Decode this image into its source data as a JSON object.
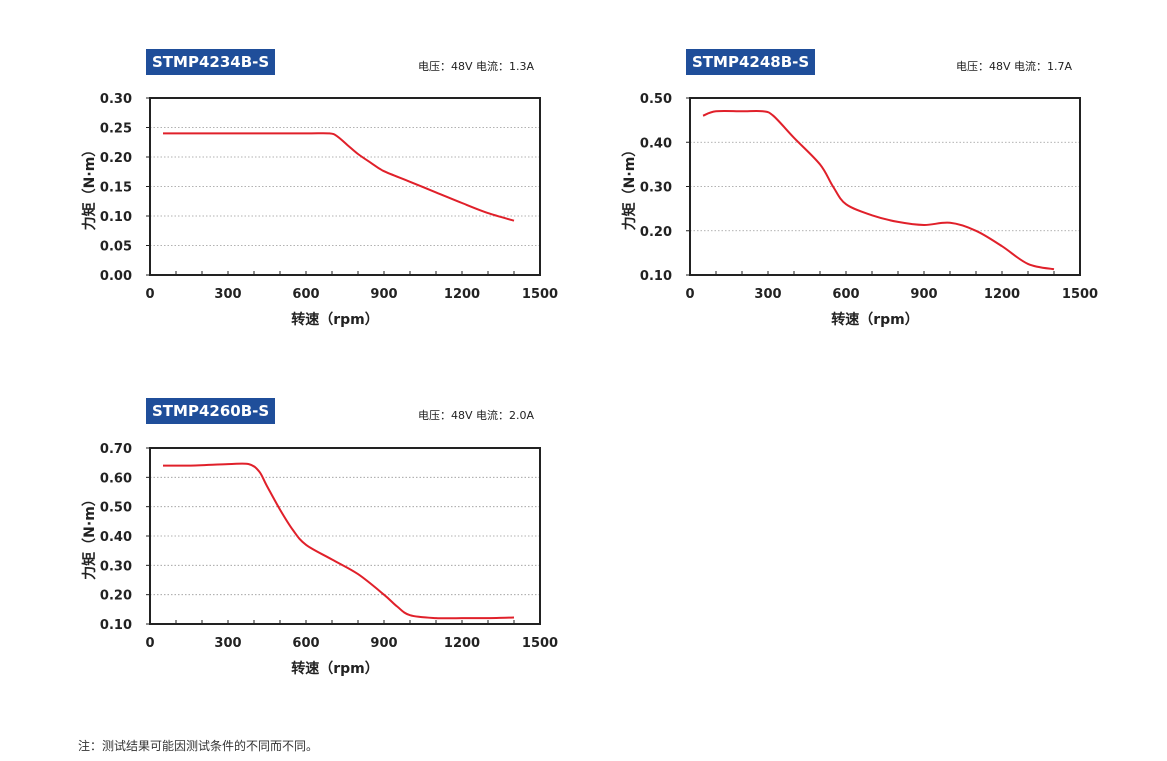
{
  "chart_data": [
    {
      "type": "line",
      "title": "STMP4234B-S",
      "subtitle": "电压：48V  电流：1.3A",
      "xlabel": "转速（rpm）",
      "ylabel": "力矩（N·m）",
      "xlim": [
        0,
        1500
      ],
      "ylim": [
        0,
        0.3
      ],
      "xticks": [
        "0",
        "300",
        "600",
        "900",
        "1200",
        "1500"
      ],
      "yticks": [
        "0.00",
        "0.05",
        "0.10",
        "0.15",
        "0.20",
        "0.25",
        "0.30"
      ],
      "grid": true,
      "series": [
        {
          "x": [
            50,
            200,
            400,
            600,
            690,
            720,
            760,
            800,
            850,
            900,
            1000,
            1100,
            1200,
            1300,
            1400
          ],
          "y": [
            0.24,
            0.24,
            0.24,
            0.24,
            0.24,
            0.235,
            0.22,
            0.205,
            0.19,
            0.176,
            0.158,
            0.14,
            0.122,
            0.105,
            0.092
          ]
        }
      ],
      "color": "#e0202a"
    },
    {
      "type": "line",
      "title": "STMP4248B-S",
      "subtitle": "电压：48V  电流：1.7A",
      "xlabel": "转速（rpm）",
      "ylabel": "力矩（N·m）",
      "xlim": [
        0,
        1500
      ],
      "ylim": [
        0.1,
        0.5
      ],
      "xticks": [
        "0",
        "300",
        "600",
        "900",
        "1200",
        "1500"
      ],
      "yticks": [
        "0.10",
        "0.20",
        "0.30",
        "0.40",
        "0.50"
      ],
      "grid": true,
      "series": [
        {
          "x": [
            50,
            100,
            200,
            280,
            320,
            400,
            500,
            550,
            600,
            700,
            800,
            900,
            1000,
            1100,
            1200,
            1300,
            1400
          ],
          "y": [
            0.46,
            0.47,
            0.47,
            0.47,
            0.46,
            0.41,
            0.35,
            0.3,
            0.26,
            0.235,
            0.22,
            0.213,
            0.218,
            0.2,
            0.165,
            0.125,
            0.113
          ]
        }
      ],
      "color": "#e0202a"
    },
    {
      "type": "line",
      "title": "STMP4260B-S",
      "subtitle": "电压：48V  电流：2.0A",
      "xlabel": "转速（rpm）",
      "ylabel": "力矩（N·m）",
      "xlim": [
        0,
        1500
      ],
      "ylim": [
        0.1,
        0.7
      ],
      "xticks": [
        "0",
        "300",
        "600",
        "900",
        "1200",
        "1500"
      ],
      "yticks": [
        "0.10",
        "0.20",
        "0.30",
        "0.40",
        "0.50",
        "0.60",
        "0.70"
      ],
      "grid": true,
      "series": [
        {
          "x": [
            50,
            150,
            300,
            380,
            420,
            450,
            500,
            550,
            600,
            700,
            800,
            900,
            950,
            1000,
            1100,
            1200,
            1300,
            1400
          ],
          "y": [
            0.64,
            0.64,
            0.645,
            0.645,
            0.62,
            0.57,
            0.49,
            0.42,
            0.37,
            0.32,
            0.27,
            0.2,
            0.16,
            0.13,
            0.12,
            0.12,
            0.12,
            0.122
          ]
        }
      ],
      "color": "#e0202a"
    }
  ],
  "footnote": "注：测试结果可能因测试条件的不同而不同。"
}
